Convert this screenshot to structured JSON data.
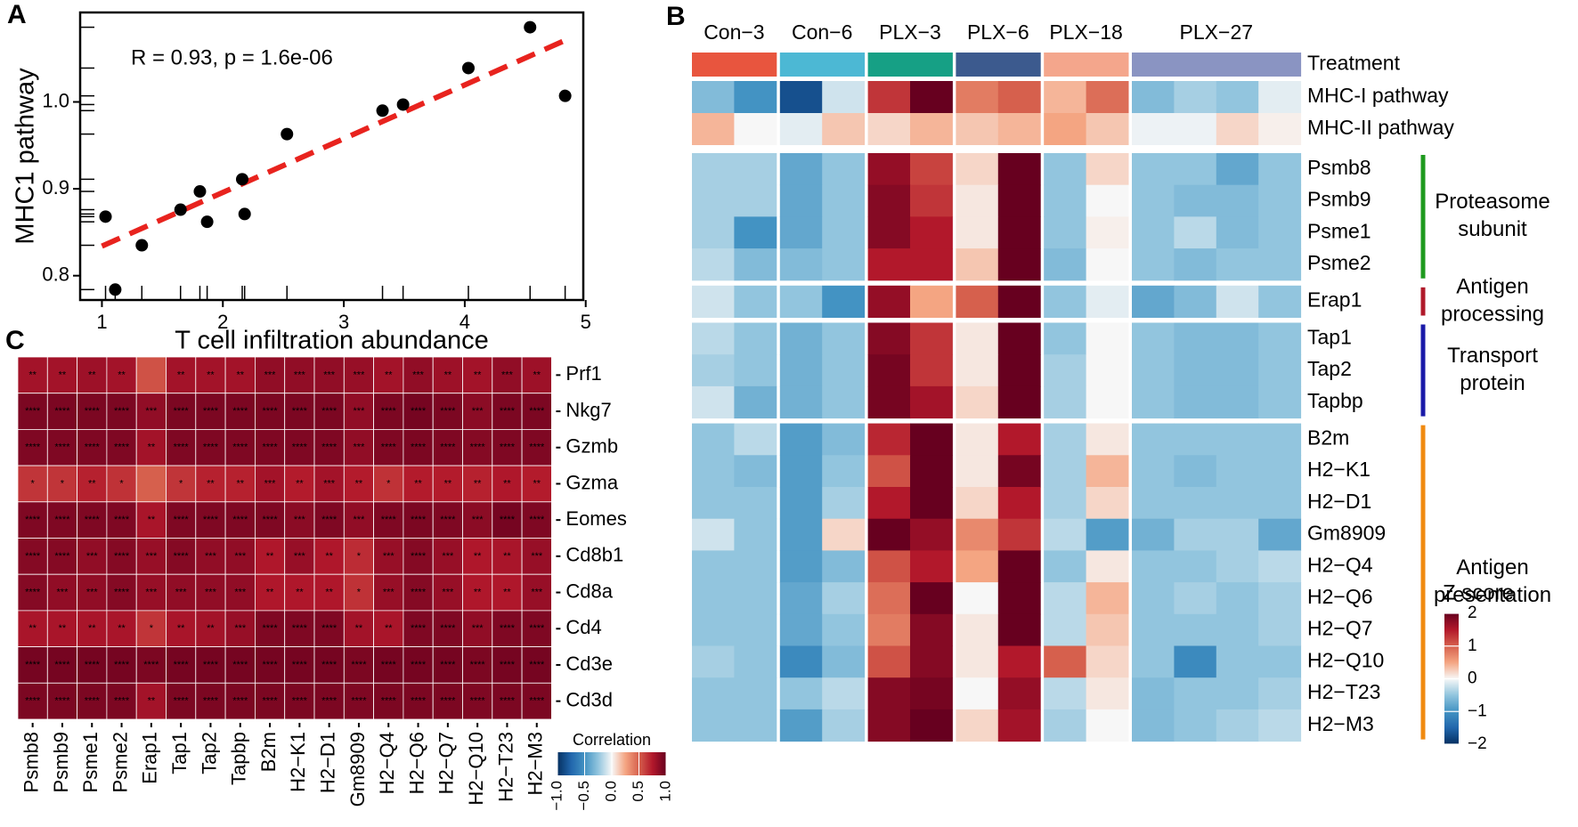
{
  "chart_data": [
    {
      "type": "scatter",
      "label": "A",
      "xlabel": "T cell infiltration abundance",
      "ylabel": "MHC1 pathway",
      "annotation": "R = 0.93, p = 1.6e-06",
      "annotation_color": "#c0272d",
      "x": [
        1.03,
        1.11,
        1.33,
        1.65,
        1.81,
        1.87,
        2.16,
        2.18,
        2.53,
        3.32,
        3.49,
        4.03,
        4.54,
        4.83
      ],
      "y": [
        0.868,
        0.784,
        0.835,
        0.876,
        0.897,
        0.862,
        0.911,
        0.871,
        0.963,
        0.99,
        0.997,
        1.039,
        1.086,
        1.007
      ],
      "color": "#000000",
      "trend": {
        "x": [
          1.0,
          4.88
        ],
        "y": [
          0.834,
          1.074
        ],
        "color": "#e8231e"
      },
      "xlim": [
        0.82,
        4.98
      ],
      "ylim": [
        0.772,
        1.103
      ],
      "xticks": [
        1,
        2,
        3,
        4,
        5
      ],
      "yticks": [
        0.8,
        0.9,
        {
          "value": 1,
          "label": "1.0"
        }
      ]
    },
    {
      "type": "heatmap",
      "label": "B",
      "columns": [
        "Con−3",
        null,
        "Con−6",
        null,
        "PLX−3",
        null,
        "PLX−6",
        null,
        "PLX−18",
        null,
        "PLX−27",
        null,
        null,
        null
      ],
      "annotations": [
        {
          "name": "Treatment",
          "colors": [
            "#e8553e",
            "#e8553e",
            "#4cb8d4",
            "#4cb8d4",
            "#16a085",
            "#16a085",
            "#3c5a8e",
            "#3c5a8e",
            "#f4a68c",
            "#f4a68c",
            "#8a94c2",
            "#8a94c2",
            "#8a94c2",
            "#8a94c2"
          ]
        },
        {
          "name": "MHC-I pathway",
          "values": [
            -0.6,
            -1.0,
            -1.7,
            -0.2,
            1.3,
            2,
            0.8,
            1.0,
            0.4,
            0.9,
            -0.6,
            -0.4,
            -0.5,
            -0.1
          ]
        },
        {
          "name": "MHC-II pathway",
          "values": [
            0.4,
            0,
            -0.1,
            0.3,
            0.2,
            0.4,
            0.3,
            0.4,
            0.5,
            0.3,
            -0.05,
            -0.05,
            0.2,
            0.05
          ]
        }
      ],
      "groups": [
        {
          "name": [
            "Proteasome",
            "subunit"
          ],
          "color": "#1e9a1e",
          "rows": [
            "Psmb8",
            "Psmb9",
            "Psme1",
            "Psme2"
          ],
          "values": [
            [
              -0.4,
              -0.4,
              -0.8,
              -0.5,
              1.7,
              1.2,
              0.2,
              2,
              -0.5,
              0.2,
              -0.5,
              -0.5,
              -0.8,
              -0.5
            ],
            [
              -0.4,
              -0.4,
              -0.8,
              -0.5,
              1.8,
              1.3,
              0.1,
              2,
              -0.5,
              0,
              -0.5,
              -0.6,
              -0.6,
              -0.5
            ],
            [
              -0.4,
              -1,
              -0.8,
              -0.5,
              1.8,
              1.5,
              0.1,
              2,
              -0.5,
              0.05,
              -0.5,
              -0.3,
              -0.6,
              -0.5
            ],
            [
              -0.3,
              -0.6,
              -0.6,
              -0.5,
              1.5,
              1.5,
              0.3,
              2,
              -0.6,
              0,
              -0.5,
              -0.6,
              -0.5,
              -0.5
            ]
          ]
        },
        {
          "name": [
            "Antigen",
            "processing"
          ],
          "color": "#b01a2a",
          "rows": [
            "Erap1"
          ],
          "values": [
            [
              -0.2,
              -0.5,
              -0.5,
              -1.0,
              1.7,
              0.5,
              1.0,
              2,
              -0.5,
              -0.1,
              -0.8,
              -0.6,
              -0.2,
              -0.5
            ]
          ]
        },
        {
          "name": [
            "Transport",
            "protein"
          ],
          "color": "#1a1aa8",
          "rows": [
            "Tap1",
            "Tap2",
            "Tapbp"
          ],
          "values": [
            [
              -0.3,
              -0.5,
              -0.7,
              -0.5,
              1.8,
              1.3,
              0.1,
              2,
              -0.5,
              0,
              -0.5,
              -0.6,
              -0.6,
              -0.5
            ],
            [
              -0.4,
              -0.5,
              -0.7,
              -0.5,
              1.9,
              1.3,
              0.1,
              2,
              -0.4,
              0,
              -0.5,
              -0.6,
              -0.6,
              -0.5
            ],
            [
              -0.2,
              -0.7,
              -0.7,
              -0.5,
              1.9,
              1.6,
              0.2,
              2,
              -0.4,
              0,
              -0.5,
              -0.6,
              -0.6,
              -0.5
            ]
          ]
        },
        {
          "name": [
            "Antigen",
            "presentation"
          ],
          "color": "#f08a10",
          "rows": [
            "B2m",
            "H2−K1",
            "H2−D1",
            "Gm8909",
            "H2−Q4",
            "H2−Q6",
            "H2−Q7",
            "H2−Q10",
            "H2−T23",
            "H2−M3"
          ],
          "values": [
            [
              -0.5,
              -0.3,
              -0.9,
              -0.6,
              1.4,
              2,
              0.1,
              1.5,
              -0.4,
              0.1,
              -0.5,
              -0.5,
              -0.5,
              -0.5
            ],
            [
              -0.5,
              -0.6,
              -0.9,
              -0.5,
              1.1,
              2,
              0.1,
              1.9,
              -0.4,
              0.4,
              -0.5,
              -0.6,
              -0.5,
              -0.5
            ],
            [
              -0.5,
              -0.5,
              -0.9,
              -0.4,
              1.5,
              2,
              0.2,
              1.5,
              -0.4,
              0.2,
              -0.5,
              -0.5,
              -0.5,
              -0.5
            ],
            [
              -0.2,
              -0.5,
              -0.9,
              0.2,
              2,
              1.7,
              0.7,
              1.3,
              -0.3,
              -0.9,
              -0.7,
              -0.4,
              -0.4,
              -0.8
            ],
            [
              -0.5,
              -0.5,
              -0.9,
              -0.6,
              1.1,
              1.5,
              0.5,
              2,
              -0.5,
              0.1,
              -0.5,
              -0.5,
              -0.4,
              -0.3
            ],
            [
              -0.5,
              -0.5,
              -0.8,
              -0.4,
              0.9,
              2,
              0,
              2,
              -0.3,
              0.4,
              -0.5,
              -0.4,
              -0.5,
              -0.4
            ],
            [
              -0.5,
              -0.5,
              -0.8,
              -0.5,
              0.8,
              1.8,
              0.1,
              2,
              -0.3,
              0.3,
              -0.5,
              -0.5,
              -0.5,
              -0.4
            ],
            [
              -0.4,
              -0.5,
              -1.1,
              -0.6,
              1.1,
              1.8,
              0.1,
              1.5,
              1.0,
              0.2,
              -0.5,
              -1.1,
              -0.5,
              -0.5
            ],
            [
              -0.5,
              -0.5,
              -0.5,
              -0.3,
              1.8,
              1.9,
              0,
              1.7,
              -0.3,
              0.1,
              -0.6,
              -0.5,
              -0.5,
              -0.4
            ],
            [
              -0.5,
              -0.5,
              -0.9,
              -0.4,
              1.8,
              2,
              0.2,
              1.6,
              -0.4,
              0,
              -0.6,
              -0.5,
              -0.4,
              -0.3
            ]
          ]
        }
      ],
      "zlim": [
        -2,
        2
      ],
      "colormap": [
        "#053061",
        "#2166ac",
        "#4393c3",
        "#92c5de",
        "#f7f7f7",
        "#f4a582",
        "#d6604d",
        "#b2182b",
        "#67001f"
      ],
      "legend": {
        "title": "Z score",
        "ticks": [
          2,
          1,
          0,
          {
            "value": -1,
            "label": "−1"
          },
          {
            "value": -2,
            "label": "−2"
          }
        ]
      }
    },
    {
      "type": "heatmap",
      "label": "C",
      "rows": [
        "Prf1",
        "Nkg7",
        "Gzmb",
        "Gzma",
        "Eomes",
        "Cd8b1",
        "Cd8a",
        "Cd4",
        "Cd3e",
        "Cd3d"
      ],
      "columns": [
        "Psmb8",
        "Psmb9",
        "Psme1",
        "Psme2",
        "Erap1",
        "Tap1",
        "Tap2",
        "Tapbp",
        "B2m",
        "H2−K1",
        "H2−D1",
        "Gm8909",
        "H2−Q4",
        "H2−Q6",
        "H2−Q7",
        "H2−Q10",
        "H2−T23",
        "H2−M3"
      ],
      "column_colors": [
        "#1e9a1e",
        "#1e9a1e",
        "#1e9a1e",
        "#1e9a1e",
        "#b01a2a",
        "#1a1aa8",
        "#1a1aa8",
        "#1a1aa8",
        "#f08a10",
        "#f08a10",
        "#f08a10",
        "#f08a10",
        "#f08a10",
        "#f08a10",
        "#f08a10",
        "#f08a10",
        "#f08a10",
        "#f08a10"
      ],
      "values": [
        [
          0.8,
          0.8,
          0.82,
          0.8,
          0.55,
          0.8,
          0.8,
          0.8,
          0.86,
          0.86,
          0.86,
          0.84,
          0.8,
          0.86,
          0.82,
          0.8,
          0.86,
          0.82
        ],
        [
          0.93,
          0.93,
          0.93,
          0.93,
          0.86,
          0.93,
          0.93,
          0.93,
          0.93,
          0.93,
          0.93,
          0.86,
          0.93,
          0.95,
          0.93,
          0.88,
          0.93,
          0.93
        ],
        [
          0.92,
          0.92,
          0.92,
          0.92,
          0.8,
          0.92,
          0.92,
          0.92,
          0.92,
          0.92,
          0.92,
          0.86,
          0.92,
          0.93,
          0.92,
          0.9,
          0.92,
          0.92
        ],
        [
          0.65,
          0.65,
          0.72,
          0.66,
          0.5,
          0.65,
          0.72,
          0.72,
          0.8,
          0.74,
          0.8,
          0.74,
          0.66,
          0.74,
          0.74,
          0.72,
          0.76,
          0.74
        ],
        [
          0.92,
          0.92,
          0.92,
          0.92,
          0.78,
          0.92,
          0.92,
          0.92,
          0.92,
          0.88,
          0.92,
          0.86,
          0.92,
          0.93,
          0.92,
          0.88,
          0.95,
          0.92
        ],
        [
          0.9,
          0.9,
          0.86,
          0.9,
          0.84,
          0.9,
          0.86,
          0.86,
          0.76,
          0.84,
          0.76,
          0.68,
          0.84,
          0.9,
          0.84,
          0.76,
          0.78,
          0.84
        ],
        [
          0.9,
          0.86,
          0.86,
          0.9,
          0.84,
          0.86,
          0.86,
          0.86,
          0.76,
          0.76,
          0.76,
          0.66,
          0.84,
          0.9,
          0.84,
          0.76,
          0.76,
          0.84
        ],
        [
          0.78,
          0.78,
          0.78,
          0.78,
          0.65,
          0.78,
          0.8,
          0.84,
          0.92,
          0.92,
          0.92,
          0.8,
          0.78,
          0.92,
          0.92,
          0.86,
          0.92,
          0.92
        ],
        [
          0.95,
          0.95,
          0.95,
          0.95,
          0.93,
          0.95,
          0.95,
          0.95,
          0.95,
          0.95,
          0.95,
          0.93,
          0.95,
          0.95,
          0.95,
          0.93,
          0.95,
          0.95
        ],
        [
          0.93,
          0.93,
          0.93,
          0.93,
          0.8,
          0.93,
          0.93,
          0.93,
          0.93,
          0.93,
          0.93,
          0.92,
          0.93,
          0.93,
          0.93,
          0.92,
          0.93,
          0.93
        ]
      ],
      "stars": [
        [
          "**",
          "**",
          "**",
          "**",
          null,
          "**",
          "**",
          "**",
          "***",
          "***",
          "***",
          "***",
          "**",
          "***",
          "**",
          "**",
          "***",
          "**"
        ],
        [
          "****",
          "****",
          "****",
          "****",
          "***",
          "****",
          "****",
          "****",
          "****",
          "****",
          "****",
          "***",
          "****",
          "****",
          "****",
          "***",
          "****",
          "****"
        ],
        [
          "****",
          "****",
          "****",
          "****",
          "**",
          "****",
          "****",
          "****",
          "****",
          "****",
          "****",
          "***",
          "****",
          "****",
          "****",
          "****",
          "****",
          "****"
        ],
        [
          "*",
          "*",
          "**",
          "*",
          null,
          "*",
          "**",
          "**",
          "***",
          "**",
          "***",
          "**",
          "*",
          "**",
          "**",
          "**",
          "**",
          "**"
        ],
        [
          "****",
          "****",
          "****",
          "****",
          "**",
          "****",
          "****",
          "****",
          "****",
          "***",
          "****",
          "***",
          "****",
          "****",
          "****",
          "***",
          "****",
          "****"
        ],
        [
          "****",
          "****",
          "***",
          "****",
          "***",
          "****",
          "***",
          "***",
          "**",
          "***",
          "**",
          "*",
          "***",
          "****",
          "***",
          "**",
          "**",
          "***"
        ],
        [
          "****",
          "***",
          "***",
          "****",
          "***",
          "***",
          "***",
          "***",
          "**",
          "**",
          "**",
          "*",
          "***",
          "****",
          "***",
          "**",
          "**",
          "***"
        ],
        [
          "**",
          "**",
          "**",
          "**",
          "*",
          "**",
          "**",
          "***",
          "****",
          "****",
          "****",
          "**",
          "**",
          "****",
          "****",
          "***",
          "****",
          "****"
        ],
        [
          "****",
          "****",
          "****",
          "****",
          "****",
          "****",
          "****",
          "****",
          "****",
          "****",
          "****",
          "****",
          "****",
          "****",
          "****",
          "****",
          "****",
          "****"
        ],
        [
          "****",
          "****",
          "****",
          "****",
          "**",
          "****",
          "****",
          "****",
          "****",
          "****",
          "****",
          "****",
          "****",
          "****",
          "****",
          "****",
          "****",
          "****"
        ]
      ],
      "zlim": [
        -1,
        1
      ],
      "colormap": [
        "#053061",
        "#2166ac",
        "#4393c3",
        "#92c5de",
        "#f7f7f7",
        "#f4a582",
        "#d6604d",
        "#b2182b",
        "#67001f"
      ],
      "legend": {
        "title": "Correlation",
        "ticks": [
          {
            "value": -1,
            "label": "−1.0"
          },
          {
            "value": -0.5,
            "label": "−0.5"
          },
          {
            "value": 0,
            "label": "0.0"
          },
          0.5,
          {
            "value": 1,
            "label": "1.0"
          }
        ]
      }
    }
  ]
}
